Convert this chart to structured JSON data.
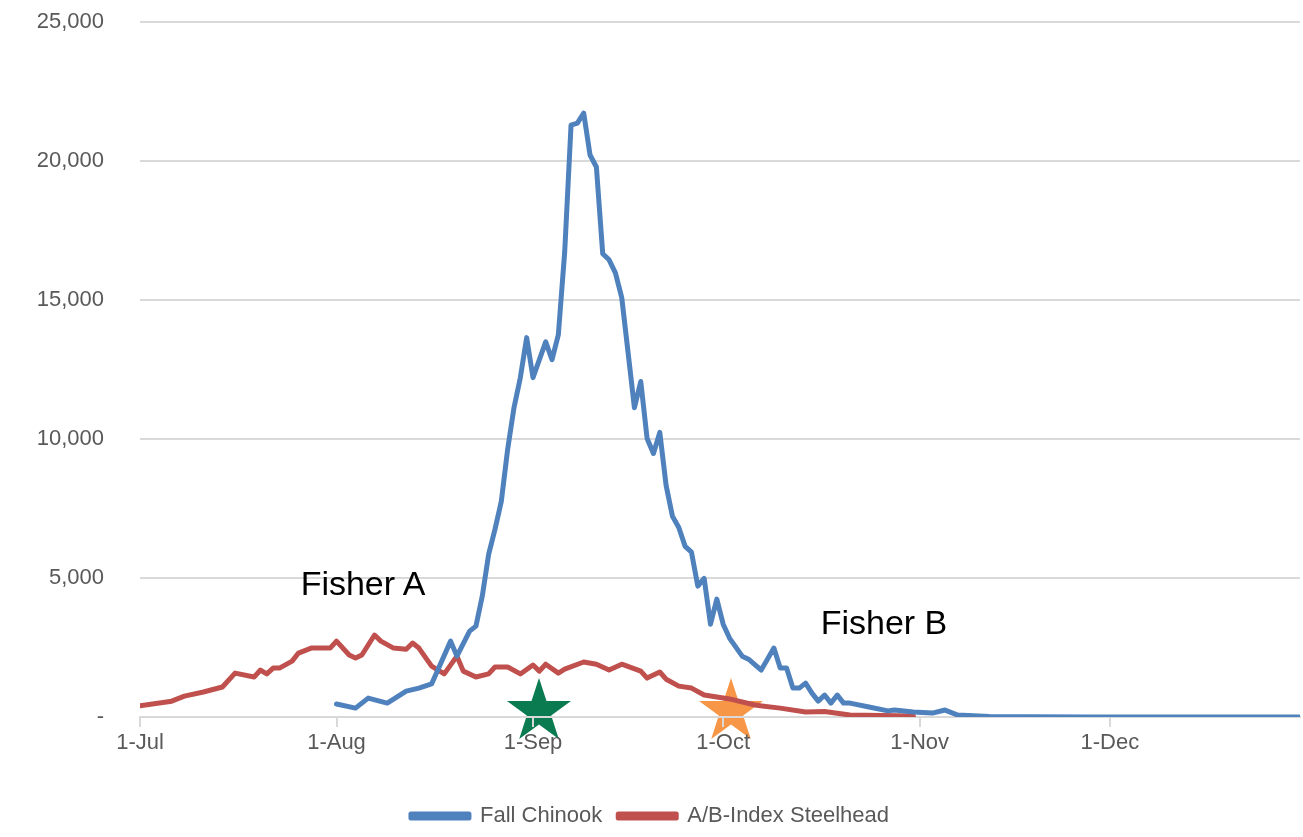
{
  "chart_data": {
    "type": "line",
    "xlim": [
      "--07-01",
      "--12-31"
    ],
    "xticks": [
      {
        "value": "--07-01",
        "label": "1-Jul"
      },
      {
        "value": "--08-01",
        "label": "1-Aug"
      },
      {
        "value": "--09-01",
        "label": "1-Sep"
      },
      {
        "value": "--10-01",
        "label": "1-Oct"
      },
      {
        "value": "--11-01",
        "label": "1-Nov"
      },
      {
        "value": "--12-01",
        "label": "1-Dec"
      }
    ],
    "ylim": [
      0,
      25000
    ],
    "yticks": [
      {
        "value": 0,
        "label": "-"
      },
      {
        "value": 5000,
        "label": "5,000"
      },
      {
        "value": 10000,
        "label": "10,000"
      },
      {
        "value": 15000,
        "label": "15,000"
      },
      {
        "value": 20000,
        "label": "20,000"
      },
      {
        "value": 25000,
        "label": "25,000"
      }
    ],
    "grid": "y",
    "legend": "bottom",
    "marker": "none",
    "line_style": "solid",
    "series": [
      {
        "name": "Fall Chinook",
        "color": "#4f81bd",
        "x": [
          "--08-01",
          "--08-04",
          "--08-06",
          "--08-09",
          "--08-12",
          "--08-14",
          "--08-16",
          "--08-19",
          "--08-20",
          "--08-22",
          "--08-23",
          "--08-24",
          "--08-25",
          "--08-26",
          "--08-27",
          "--08-28",
          "--08-29",
          "--08-30",
          "--08-31",
          "--09-01",
          "--09-03",
          "--09-04",
          "--09-05",
          "--09-06",
          "--09-07",
          "--09-08",
          "--09-09",
          "--09-10",
          "--09-11",
          "--09-12",
          "--09-13",
          "--09-14",
          "--09-15",
          "--09-16",
          "--09-17",
          "--09-18",
          "--09-19",
          "--09-20",
          "--09-21",
          "--09-22",
          "--09-23",
          "--09-24",
          "--09-25",
          "--09-26",
          "--09-27",
          "--09-28",
          "--09-29",
          "--09-30",
          "--10-01",
          "--10-02",
          "--10-04",
          "--10-05",
          "--10-07",
          "--10-09",
          "--10-10",
          "--10-11",
          "--10-12",
          "--10-13",
          "--10-14",
          "--10-15",
          "--10-16",
          "--10-17",
          "--10-18",
          "--10-19",
          "--10-20",
          "--10-21",
          "--10-24",
          "--10-27",
          "--10-28",
          "--10-31",
          "--11-03",
          "--11-05",
          "--11-07",
          "--11-12",
          "--11-18",
          "--11-28",
          "--12-31"
        ],
        "values": [
          470,
          320,
          680,
          500,
          930,
          1040,
          1190,
          2730,
          2190,
          3090,
          3270,
          4350,
          5850,
          6750,
          7760,
          9630,
          11130,
          12210,
          13650,
          12210,
          13500,
          12860,
          13760,
          16740,
          21300,
          21370,
          21730,
          20220,
          19790,
          16670,
          16450,
          15980,
          15090,
          13110,
          11130,
          12070,
          10020,
          9480,
          10240,
          8330,
          7220,
          6820,
          6140,
          5930,
          4710,
          4990,
          3340,
          4240,
          3340,
          2840,
          2190,
          2080,
          1690,
          2480,
          1760,
          1760,
          1040,
          1040,
          1220,
          860,
          570,
          790,
          500,
          790,
          500,
          500,
          360,
          220,
          250,
          180,
          140,
          250,
          70,
          20,
          10,
          0,
          0
        ]
      },
      {
        "name": "A/B-Index Steelhead",
        "color": "#c0504d",
        "x": [
          "--07-01",
          "--07-06",
          "--07-08",
          "--07-11",
          "--07-14",
          "--07-16",
          "--07-19",
          "--07-20",
          "--07-21",
          "--07-22",
          "--07-23",
          "--07-25",
          "--07-26",
          "--07-28",
          "--07-31",
          "--08-01",
          "--08-03",
          "--08-04",
          "--08-05",
          "--08-07",
          "--08-08",
          "--08-10",
          "--08-12",
          "--08-13",
          "--08-14",
          "--08-16",
          "--08-18",
          "--08-20",
          "--08-21",
          "--08-23",
          "--08-25",
          "--08-26",
          "--08-28",
          "--08-30",
          "--09-01",
          "--09-02",
          "--09-03",
          "--09-05",
          "--09-06",
          "--09-09",
          "--09-11",
          "--09-13",
          "--09-15",
          "--09-18",
          "--09-19",
          "--09-21",
          "--09-22",
          "--09-24",
          "--09-26",
          "--09-28",
          "--10-02",
          "--10-06",
          "--10-10",
          "--10-14",
          "--10-17",
          "--10-21",
          "--10-31"
        ],
        "values": [
          400,
          570,
          750,
          900,
          1080,
          1580,
          1440,
          1690,
          1550,
          1760,
          1760,
          2010,
          2300,
          2480,
          2480,
          2730,
          2230,
          2120,
          2230,
          2950,
          2730,
          2480,
          2440,
          2660,
          2480,
          1830,
          1550,
          2190,
          1650,
          1440,
          1550,
          1800,
          1800,
          1550,
          1870,
          1650,
          1900,
          1580,
          1720,
          1980,
          1900,
          1690,
          1900,
          1650,
          1400,
          1620,
          1360,
          1110,
          1040,
          790,
          650,
          430,
          320,
          180,
          200,
          70,
          40
        ]
      }
    ],
    "annotations": [
      "Fisher A",
      "Fisher B"
    ]
  }
}
